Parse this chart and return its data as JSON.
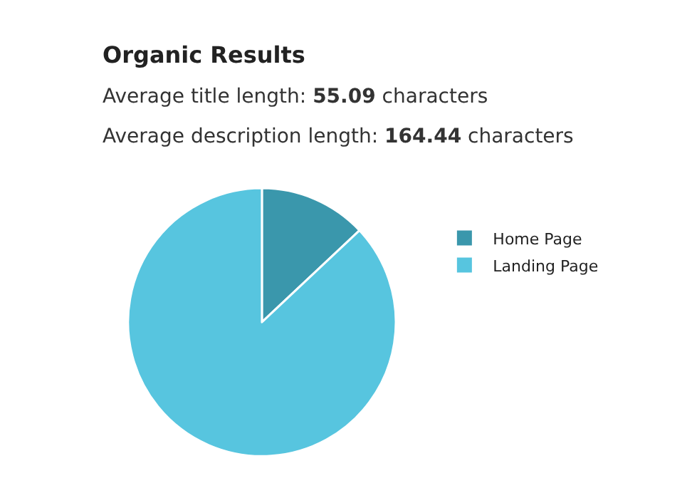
{
  "chart_data": {
    "type": "pie",
    "title": "Organic Results",
    "subtitle": "Average title length: 55.09 characters\nAverage description length: 164.44 characters",
    "categories": [
      "Home Page",
      "Landing Page"
    ],
    "values": [
      13,
      87
    ],
    "colors": [
      "#3a97ac",
      "#57c5df"
    ],
    "legend": "right"
  }
}
